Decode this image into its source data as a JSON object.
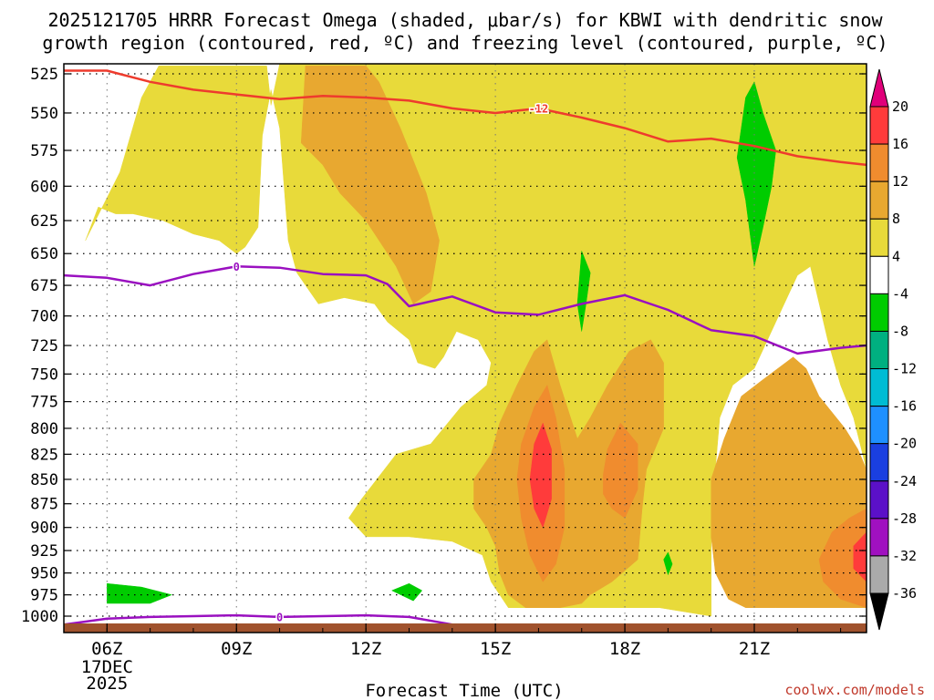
{
  "chart_data": {
    "type": "heatmap",
    "title_line1": "2025121705 HRRR Forecast Omega (shaded, μbar/s) for KBWI with dendritic snow",
    "title_line2": "growth region (contoured, red, ºC) and freezing level (contoured, purple, ºC)",
    "xlabel": "Forecast Time (UTC)",
    "credit": "coolwx.com/models",
    "x_range": [
      5,
      23.6
    ],
    "x_ticks": [
      {
        "hour": 6,
        "label": "06Z"
      },
      {
        "hour": 9,
        "label": "09Z"
      },
      {
        "hour": 12,
        "label": "12Z"
      },
      {
        "hour": 15,
        "label": "15Z"
      },
      {
        "hour": 18,
        "label": "18Z"
      },
      {
        "hour": 21,
        "label": "21Z"
      }
    ],
    "date_label_line1": "17DEC",
    "date_label_line2": "2025",
    "y_ticks": [
      525,
      550,
      575,
      600,
      625,
      650,
      675,
      700,
      725,
      750,
      775,
      800,
      825,
      850,
      875,
      900,
      925,
      950,
      975,
      1000
    ],
    "y_scale": "log",
    "y_range_top": 520,
    "colorbar": {
      "levels": [
        {
          "label": "",
          "color": "#e0007a"
        },
        {
          "label": "20",
          "color": "#ff3b3b"
        },
        {
          "label": "16",
          "color": "#f08c2e"
        },
        {
          "label": "12",
          "color": "#e8a830"
        },
        {
          "label": "8",
          "color": "#e8da3a"
        },
        {
          "label": "4",
          "color": "#ffffff"
        },
        {
          "label": "-4",
          "color": "#00cc00"
        },
        {
          "label": "-8",
          "color": "#00b080"
        },
        {
          "label": "-12",
          "color": "#00bcd4"
        },
        {
          "label": "-16",
          "color": "#1e90ff"
        },
        {
          "label": "-20",
          "color": "#1a3fe0"
        },
        {
          "label": "-24",
          "color": "#5b10c8"
        },
        {
          "label": "-28",
          "color": "#a010c0"
        },
        {
          "label": "-32",
          "color": "#aaaaaa"
        },
        {
          "label": "-36",
          "color": "#000000"
        }
      ]
    },
    "omega_regions": [
      {
        "level": "4-8",
        "color": "#e8da3a",
        "points": [
          [
            5.5,
            640
          ],
          [
            6.3,
            590
          ],
          [
            6.8,
            540
          ],
          [
            7.2,
            520
          ],
          [
            9.7,
            520
          ],
          [
            9.8,
            545
          ],
          [
            10,
            515
          ],
          [
            23.6,
            515
          ],
          [
            23.6,
            840
          ],
          [
            23.3,
            790
          ],
          [
            23,
            760
          ],
          [
            22.7,
            720
          ],
          [
            22.3,
            660
          ],
          [
            22,
            667
          ],
          [
            21.5,
            705
          ],
          [
            21,
            745
          ],
          [
            20.5,
            760
          ],
          [
            20.2,
            790
          ],
          [
            20,
            890
          ],
          [
            20,
            1000
          ],
          [
            18.8,
            990
          ],
          [
            17.6,
            990
          ],
          [
            16.5,
            990
          ],
          [
            15.3,
            990
          ],
          [
            14.9,
            960
          ],
          [
            14.7,
            930
          ],
          [
            14,
            915
          ],
          [
            13,
            910
          ],
          [
            12,
            910
          ],
          [
            11.6,
            890
          ],
          [
            11.9,
            870
          ],
          [
            12.7,
            825
          ],
          [
            13.5,
            815
          ],
          [
            14.2,
            780
          ],
          [
            14.8,
            760
          ],
          [
            14.9,
            740
          ],
          [
            14.6,
            720
          ],
          [
            14.1,
            713
          ],
          [
            13.8,
            735
          ],
          [
            13.6,
            745
          ],
          [
            13.2,
            740
          ],
          [
            13,
            720
          ],
          [
            12.5,
            705
          ],
          [
            12.2,
            690
          ],
          [
            11.5,
            685
          ],
          [
            10.9,
            690
          ],
          [
            10.7,
            680
          ],
          [
            10.4,
            665
          ],
          [
            10.2,
            640
          ],
          [
            10,
            560
          ],
          [
            9.8,
            535
          ],
          [
            9.6,
            565
          ],
          [
            9.5,
            630
          ],
          [
            9.2,
            645
          ],
          [
            9,
            650
          ],
          [
            8.6,
            640
          ],
          [
            8,
            635
          ],
          [
            7.3,
            625
          ],
          [
            6.6,
            620
          ],
          [
            6.2,
            620
          ],
          [
            5.8,
            615
          ]
        ]
      },
      {
        "level": "8-12",
        "color": "#e8a830",
        "points": [
          [
            10.6,
            520
          ],
          [
            12,
            520
          ],
          [
            12.3,
            530
          ],
          [
            12.8,
            560
          ],
          [
            13.4,
            605
          ],
          [
            13.7,
            640
          ],
          [
            13.5,
            680
          ],
          [
            13.1,
            690
          ],
          [
            12.7,
            660
          ],
          [
            12,
            625
          ],
          [
            11.4,
            605
          ],
          [
            11,
            585
          ],
          [
            10.5,
            570
          ]
        ]
      },
      {
        "level": "8-12",
        "color": "#e8a830",
        "points": [
          [
            14.5,
            850
          ],
          [
            14.9,
            825
          ],
          [
            15.1,
            795
          ],
          [
            15.5,
            760
          ],
          [
            15.9,
            730
          ],
          [
            16.2,
            720
          ],
          [
            16.5,
            760
          ],
          [
            16.9,
            810
          ],
          [
            17.2,
            790
          ],
          [
            17.6,
            760
          ],
          [
            18.1,
            730
          ],
          [
            18.6,
            720
          ],
          [
            18.9,
            740
          ],
          [
            18.9,
            800
          ],
          [
            18.5,
            840
          ],
          [
            18.4,
            880
          ],
          [
            18.3,
            935
          ],
          [
            17.7,
            960
          ],
          [
            17.2,
            975
          ],
          [
            17,
            985
          ],
          [
            16.5,
            990
          ],
          [
            15.7,
            990
          ],
          [
            15.3,
            975
          ],
          [
            15.1,
            950
          ],
          [
            15,
            920
          ],
          [
            14.8,
            900
          ],
          [
            14.5,
            880
          ]
        ]
      },
      {
        "level": "8-12",
        "color": "#e8a830",
        "points": [
          [
            20,
            850
          ],
          [
            20.3,
            810
          ],
          [
            20.7,
            770
          ],
          [
            21.2,
            755
          ],
          [
            21.9,
            735
          ],
          [
            22.2,
            745
          ],
          [
            22.5,
            770
          ],
          [
            23.1,
            800
          ],
          [
            23.4,
            820
          ],
          [
            23.6,
            840
          ],
          [
            23.6,
            990
          ],
          [
            22.5,
            990
          ],
          [
            21.5,
            990
          ],
          [
            20.8,
            990
          ],
          [
            20.4,
            980
          ],
          [
            20.1,
            950
          ],
          [
            20,
            910
          ]
        ]
      },
      {
        "level": "12-16",
        "color": "#f08c2e",
        "points": [
          [
            15.6,
            815
          ],
          [
            15.9,
            780
          ],
          [
            16.2,
            760
          ],
          [
            16.4,
            790
          ],
          [
            16.6,
            840
          ],
          [
            16.6,
            900
          ],
          [
            16.4,
            940
          ],
          [
            16.1,
            960
          ],
          [
            15.8,
            930
          ],
          [
            15.6,
            890
          ],
          [
            15.5,
            850
          ]
        ]
      },
      {
        "level": "12-16",
        "color": "#f08c2e",
        "points": [
          [
            17.5,
            845
          ],
          [
            17.6,
            820
          ],
          [
            17.9,
            795
          ],
          [
            18.3,
            815
          ],
          [
            18.3,
            860
          ],
          [
            18.0,
            890
          ],
          [
            17.7,
            880
          ],
          [
            17.5,
            865
          ]
        ]
      },
      {
        "level": "12-16",
        "color": "#f08c2e",
        "points": [
          [
            23.6,
            880
          ],
          [
            23.2,
            890
          ],
          [
            22.8,
            905
          ],
          [
            22.5,
            935
          ],
          [
            22.6,
            960
          ],
          [
            23.0,
            980
          ],
          [
            23.6,
            990
          ]
        ]
      },
      {
        "level": "16-20",
        "color": "#ff3b3b",
        "points": [
          [
            15.9,
            815
          ],
          [
            16.1,
            795
          ],
          [
            16.3,
            820
          ],
          [
            16.3,
            870
          ],
          [
            16.1,
            900
          ],
          [
            15.9,
            880
          ],
          [
            15.8,
            850
          ]
        ]
      },
      {
        "level": "16-20",
        "color": "#ff3b3b",
        "points": [
          [
            23.6,
            905
          ],
          [
            23.3,
            920
          ],
          [
            23.3,
            945
          ],
          [
            23.6,
            960
          ]
        ]
      },
      {
        "level": "-4 to -8",
        "color": "#00cc00",
        "points": [
          [
            20.8,
            540
          ],
          [
            21.0,
            530
          ],
          [
            21.2,
            550
          ],
          [
            21.5,
            575
          ],
          [
            21.4,
            600
          ],
          [
            21.2,
            630
          ],
          [
            21.0,
            660
          ],
          [
            20.8,
            610
          ],
          [
            20.6,
            580
          ]
        ]
      },
      {
        "level": "-4 to -8",
        "color": "#00cc00",
        "points": [
          [
            16.9,
            690
          ],
          [
            17.0,
            648
          ],
          [
            17.2,
            665
          ],
          [
            17.1,
            690
          ],
          [
            17.0,
            713
          ]
        ]
      },
      {
        "level": "-4 to -8",
        "color": "#00cc00",
        "points": [
          [
            18.9,
            935
          ],
          [
            19.0,
            927
          ],
          [
            19.1,
            940
          ],
          [
            19.0,
            952
          ]
        ]
      },
      {
        "level": "-4 to -8",
        "color": "#00cc00",
        "points": [
          [
            6,
            962
          ],
          [
            6.8,
            966
          ],
          [
            7.5,
            975
          ],
          [
            7,
            985
          ],
          [
            6,
            985
          ]
        ]
      },
      {
        "level": "-4 to -8",
        "color": "#00cc00",
        "points": [
          [
            12.6,
            970
          ],
          [
            13.0,
            962
          ],
          [
            13.3,
            970
          ],
          [
            13.1,
            982
          ]
        ]
      }
    ],
    "dgz_line": {
      "label": "-12",
      "label_hour": 16.0,
      "color": "#ee3b2d",
      "points": [
        [
          5,
          523
        ],
        [
          6,
          523
        ],
        [
          7,
          530
        ],
        [
          8,
          535
        ],
        [
          9,
          538
        ],
        [
          10,
          541
        ],
        [
          11,
          539
        ],
        [
          12,
          540
        ],
        [
          13,
          542
        ],
        [
          14,
          547
        ],
        [
          15,
          550
        ],
        [
          16,
          547
        ],
        [
          17,
          553
        ],
        [
          18,
          560
        ],
        [
          19,
          569
        ],
        [
          20,
          567
        ],
        [
          21,
          572
        ],
        [
          22,
          579
        ],
        [
          23,
          583
        ],
        [
          23.6,
          585
        ]
      ]
    },
    "freezing_lines": [
      {
        "label": "0",
        "label_hour": 9.0,
        "color": "#9a10c0",
        "points": [
          [
            5,
            667
          ],
          [
            6,
            669
          ],
          [
            7,
            675
          ],
          [
            8,
            666
          ],
          [
            9,
            660
          ],
          [
            10,
            661
          ],
          [
            11,
            666
          ],
          [
            12,
            667
          ],
          [
            12.5,
            674
          ],
          [
            13,
            692
          ],
          [
            14,
            684
          ],
          [
            15,
            697
          ],
          [
            16,
            699
          ],
          [
            17,
            690
          ],
          [
            18,
            683
          ],
          [
            19,
            695
          ],
          [
            20,
            712
          ],
          [
            21,
            717
          ],
          [
            22,
            732
          ],
          [
            23,
            727
          ],
          [
            23.6,
            725
          ]
        ]
      },
      {
        "label": "0",
        "label_hour": 10.0,
        "color": "#9a10c0",
        "points": [
          [
            5,
            1010
          ],
          [
            6,
            1003
          ],
          [
            7,
            1001
          ],
          [
            8,
            1000
          ],
          [
            9,
            999
          ],
          [
            10,
            1001
          ],
          [
            11,
            1000
          ],
          [
            12,
            999
          ],
          [
            13,
            1001
          ],
          [
            14,
            1010
          ]
        ]
      }
    ],
    "ground_color": "#a0522d"
  }
}
